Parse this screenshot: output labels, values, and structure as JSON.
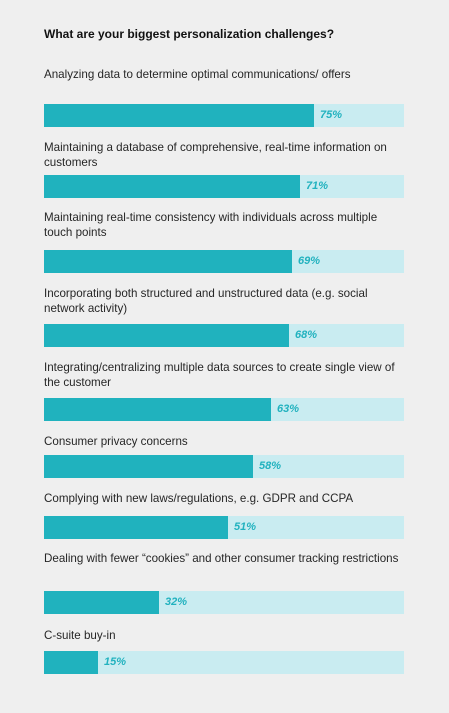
{
  "chart_data": {
    "type": "bar",
    "orientation": "horizontal",
    "title": "What are your biggest personalization challenges?",
    "xlim": [
      0,
      100
    ],
    "value_suffix": "%",
    "categories": [
      "Analyzing data to determine optimal communications/ offers",
      "Maintaining a database of comprehensive, real-time information on customers",
      "Maintaining real-time consistency with individuals across multiple touch points",
      "Incorporating both structured and unstructured data (e.g. social network activity)",
      "Integrating/centralizing multiple data sources to create single view of the customer",
      "Consumer privacy concerns",
      "Complying with new laws/regulations, e.g. GDPR and CCPA",
      "Dealing with fewer “cookies” and other consumer tracking restrictions",
      "C-suite buy-in"
    ],
    "values": [
      75,
      71,
      69,
      68,
      63,
      58,
      51,
      32,
      15
    ],
    "labels": [
      "75%",
      "71%",
      "69%",
      "68%",
      "63%",
      "58%",
      "51%",
      "32%",
      "15%"
    ],
    "colors": {
      "bar": "#20b2be",
      "track": "#c9ecf1",
      "value_label": "#22b2bf"
    }
  }
}
